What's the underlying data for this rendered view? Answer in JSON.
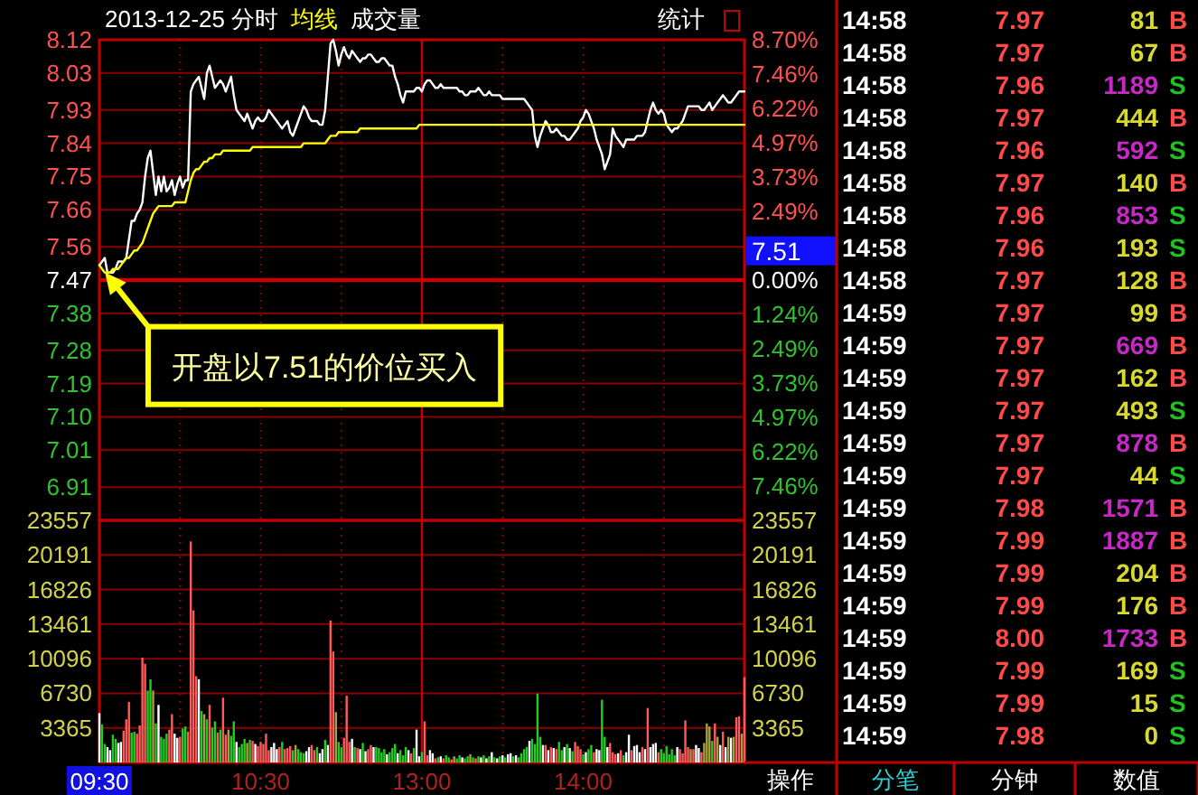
{
  "chart_data": [
    {
      "type": "line",
      "title": "2013-12-25 分时",
      "legend": "top",
      "grid": true,
      "tick_labels": "y",
      "categories": [
        "09:30",
        null,
        null,
        null,
        null,
        null,
        null,
        null,
        null,
        null,
        null,
        null,
        null,
        null,
        null,
        null,
        null,
        null,
        null,
        null,
        null,
        null,
        null,
        null,
        null,
        null,
        null,
        null,
        null,
        null,
        null,
        null,
        null,
        null,
        null,
        null,
        null,
        null,
        null,
        null,
        null,
        null,
        null,
        null,
        null,
        null,
        null,
        null,
        null,
        null,
        null,
        null,
        null,
        null,
        null,
        null,
        null,
        null,
        null,
        null,
        "10:30",
        null,
        null,
        null,
        null,
        null,
        null,
        null,
        null,
        null,
        null,
        null,
        null,
        null,
        null,
        null,
        null,
        null,
        null,
        null,
        null,
        null,
        null,
        null,
        null,
        null,
        null,
        null,
        null,
        null,
        null,
        null,
        null,
        null,
        null,
        null,
        null,
        null,
        null,
        null,
        null,
        null,
        null,
        null,
        null,
        null,
        null,
        null,
        null,
        null,
        null,
        null,
        null,
        null,
        null,
        null,
        null,
        null,
        null,
        null,
        "13:00",
        null,
        null,
        null,
        null,
        null,
        null,
        null,
        null,
        null,
        null,
        null,
        null,
        null,
        null,
        null,
        null,
        null,
        null,
        null,
        null,
        null,
        null,
        null,
        null,
        null,
        null,
        null,
        null,
        null,
        null,
        null,
        null,
        null,
        null,
        null,
        null,
        null,
        null,
        null,
        null,
        null,
        null,
        null,
        null,
        null,
        null,
        null,
        null,
        null,
        null,
        null,
        null,
        null,
        null,
        null,
        null,
        null,
        null,
        null,
        "14:00",
        null,
        null,
        null,
        null,
        null,
        null,
        null,
        null,
        null,
        null,
        null,
        null,
        null,
        null,
        null,
        null,
        null,
        null,
        null,
        null,
        null,
        null,
        null,
        null,
        null,
        null,
        null,
        null,
        null,
        null,
        null,
        null,
        null,
        null,
        null,
        null,
        null,
        null,
        null,
        null,
        null,
        null,
        null,
        null,
        null,
        null,
        null,
        null,
        null,
        null,
        null,
        null,
        null,
        null,
        null,
        null,
        null,
        null,
        null,
        null
      ],
      "ylim": [
        6.82,
        8.12
      ],
      "yticks": [
        8.12,
        8.03,
        7.93,
        7.84,
        7.75,
        7.66,
        7.56,
        7.47,
        7.38,
        7.28,
        7.19,
        {
          "value": 7.1,
          "label": "7.10"
        },
        7.01,
        6.91
      ],
      "y2lim": [
        -8.7,
        8.7
      ],
      "y2ticks": [
        {
          "value": 8.7,
          "label": "8.70%"
        },
        {
          "value": 7.46,
          "label": "7.46%"
        },
        {
          "value": 6.22,
          "label": "6.22%"
        },
        {
          "value": 4.97,
          "label": "4.97%"
        },
        {
          "value": 3.73,
          "label": "3.73%"
        },
        {
          "value": 2.49,
          "label": "2.49%"
        },
        {
          "value": 0,
          "label": "0.00%"
        },
        {
          "value": -1.24,
          "label": "1.24%"
        },
        {
          "value": -2.49,
          "label": "2.49%"
        },
        {
          "value": -3.73,
          "label": "3.73%"
        },
        {
          "value": -4.97,
          "label": "4.97%"
        },
        {
          "value": -6.22,
          "label": "6.22%"
        },
        {
          "value": -7.46,
          "label": "7.46%"
        }
      ],
      "ref_lines": [
        {
          "axis": "y",
          "value": 7.47,
          "color": "#c80000"
        },
        {
          "axis": "x",
          "value": "13:00",
          "color": "#c80000"
        }
      ],
      "series": [
        {
          "color": "#ffffff",
          "values": [
            7.51,
            7.52,
            7.53,
            7.49,
            7.49,
            7.49,
            7.5,
            7.52,
            7.52,
            7.52,
            7.53,
            7.58,
            7.63,
            7.63,
            7.65,
            7.66,
            7.68,
            7.75,
            7.8,
            7.82,
            7.76,
            7.7,
            7.75,
            7.71,
            7.75,
            7.71,
            7.72,
            7.74,
            7.7,
            7.73,
            7.75,
            7.72,
            7.74,
            7.74,
            7.98,
            8.0,
            8.01,
            8.02,
            7.99,
            7.96,
            8.03,
            8.05,
            8.02,
            7.99,
            8.0,
            8.01,
            8.0,
            7.98,
            8.0,
            8.02,
            7.97,
            7.93,
            7.92,
            7.91,
            7.9,
            7.92,
            7.9,
            7.88,
            7.9,
            7.91,
            7.9,
            7.9,
            7.91,
            7.93,
            7.92,
            7.91,
            7.9,
            7.89,
            7.88,
            7.89,
            7.9,
            7.87,
            7.86,
            7.88,
            7.9,
            7.92,
            7.94,
            7.93,
            7.91,
            7.9,
            7.9,
            7.9,
            7.89,
            7.89,
            7.93,
            8.02,
            8.11,
            8.12,
            8.09,
            8.05,
            8.08,
            8.1,
            8.08,
            8.07,
            8.09,
            8.08,
            8.07,
            8.06,
            8.07,
            8.07,
            8.08,
            8.08,
            8.07,
            8.06,
            8.06,
            8.07,
            8.07,
            8.06,
            8.05,
            8.05,
            8.02,
            8.0,
            7.97,
            7.95,
            7.98,
            7.98,
            7.98,
            7.98,
            7.99,
            7.99,
            7.98,
            8.0,
            8.01,
            8.01,
            8.0,
            7.99,
            7.99,
            8.0,
            7.99,
            7.99,
            7.99,
            7.99,
            7.99,
            7.99,
            7.98,
            7.98,
            7.97,
            7.97,
            7.98,
            7.98,
            7.98,
            7.99,
            7.98,
            7.97,
            7.97,
            7.98,
            7.97,
            7.97,
            7.97,
            7.97,
            7.96,
            7.96,
            7.96,
            7.96,
            7.96,
            7.96,
            7.96,
            7.96,
            7.96,
            7.95,
            7.94,
            7.93,
            7.86,
            7.83,
            7.86,
            7.88,
            7.9,
            7.89,
            7.87,
            7.87,
            7.88,
            7.87,
            7.86,
            7.86,
            7.85,
            7.85,
            7.86,
            7.87,
            7.88,
            7.9,
            7.91,
            7.93,
            7.92,
            7.9,
            7.88,
            7.85,
            7.83,
            7.81,
            7.77,
            7.79,
            7.81,
            7.88,
            7.86,
            7.85,
            7.84,
            7.83,
            7.85,
            7.85,
            7.85,
            7.85,
            7.86,
            7.86,
            7.86,
            7.87,
            7.9,
            7.93,
            7.95,
            7.93,
            7.92,
            7.93,
            7.92,
            7.89,
            7.88,
            7.87,
            7.88,
            7.88,
            7.89,
            7.9,
            7.92,
            7.94,
            7.94,
            7.94,
            7.94,
            7.94,
            7.93,
            7.93,
            7.94,
            7.95,
            7.93,
            7.94,
            7.95,
            7.96,
            7.97,
            7.96,
            7.95,
            7.95,
            7.96,
            7.97,
            7.98,
            7.98,
            7.98
          ]
        },
        {
          "name": "均线",
          "color": "#ffff00",
          "values": [
            7.51,
            7.5,
            7.49,
            7.49,
            7.49,
            7.5,
            7.5,
            7.5,
            7.51,
            7.52,
            7.53,
            7.53,
            7.54,
            7.55,
            7.55,
            7.56,
            7.57,
            7.59,
            7.61,
            7.63,
            7.65,
            7.66,
            7.67,
            7.67,
            7.67,
            7.67,
            7.67,
            7.67,
            7.68,
            7.68,
            7.68,
            7.68,
            7.68,
            7.71,
            7.74,
            7.76,
            7.77,
            7.77,
            7.78,
            7.79,
            7.79,
            7.8,
            7.8,
            7.81,
            7.81,
            7.81,
            7.82,
            7.82,
            7.82,
            7.82,
            7.82,
            7.82,
            7.82,
            7.82,
            7.82,
            7.82,
            7.82,
            7.83,
            7.83,
            7.83,
            7.83,
            7.83,
            7.83,
            7.83,
            7.83,
            7.83,
            7.83,
            7.83,
            7.83,
            7.83,
            7.83,
            7.83,
            7.83,
            7.83,
            7.83,
            7.83,
            7.84,
            7.84,
            7.84,
            7.84,
            7.84,
            7.84,
            7.84,
            7.84,
            7.84,
            7.85,
            7.86,
            7.86,
            7.86,
            7.87,
            7.87,
            7.87,
            7.87,
            7.87,
            7.87,
            7.87,
            7.87,
            7.88,
            7.88,
            7.88,
            7.88,
            7.88,
            7.88,
            7.88,
            7.88,
            7.88,
            7.88,
            7.88,
            7.88,
            7.88,
            7.88,
            7.88,
            7.88,
            7.88,
            7.88,
            7.88,
            7.88,
            7.88,
            7.88,
            7.89,
            7.89,
            7.89,
            7.89,
            7.89,
            7.89,
            7.89,
            7.89,
            7.89,
            7.89,
            7.89,
            7.89,
            7.89,
            7.89,
            7.89,
            7.89,
            7.89,
            7.89,
            7.89,
            7.89,
            7.89,
            7.89,
            7.89,
            7.89,
            7.89,
            7.89,
            7.89,
            7.89,
            7.89,
            7.89,
            7.89,
            7.89,
            7.89,
            7.89,
            7.89,
            7.89,
            7.89,
            7.89,
            7.89,
            7.89,
            7.89,
            7.89,
            7.89,
            7.89,
            7.89,
            7.89,
            7.89,
            7.89,
            7.89,
            7.89,
            7.89,
            7.89,
            7.89,
            7.89,
            7.89,
            7.89,
            7.89,
            7.89,
            7.89,
            7.89,
            7.89,
            7.89,
            7.89,
            7.89,
            7.89,
            7.89,
            7.89,
            7.89,
            7.89,
            7.89,
            7.89,
            7.89,
            7.89,
            7.89,
            7.89,
            7.89,
            7.89,
            7.89,
            7.89,
            7.89,
            7.89,
            7.89,
            7.89,
            7.89,
            7.89,
            7.89,
            7.89,
            7.89,
            7.89,
            7.89,
            7.89,
            7.89,
            7.89,
            7.89,
            7.89,
            7.89,
            7.89,
            7.89,
            7.89,
            7.89,
            7.89,
            7.89,
            7.89,
            7.89,
            7.89,
            7.89,
            7.89,
            7.89,
            7.89,
            7.89,
            7.89,
            7.89,
            7.89,
            7.89,
            7.89,
            7.89,
            7.89,
            7.89,
            7.89,
            7.89,
            7.89,
            7.89
          ]
        }
      ],
      "annotations": [
        "开盘以7.51的价位买入",
        "7.51",
        "成交量",
        "统计"
      ]
    },
    {
      "type": "bar",
      "grid": true,
      "categories": [
        "09:30",
        null,
        null,
        null,
        null,
        null,
        null,
        null,
        null,
        null,
        null,
        null,
        null,
        null,
        null,
        null,
        null,
        null,
        null,
        null,
        null,
        null,
        null,
        null,
        null,
        null,
        null,
        null,
        null,
        null,
        null,
        null,
        null,
        null,
        null,
        null,
        null,
        null,
        null,
        null,
        null,
        null,
        null,
        null,
        null,
        null,
        null,
        null,
        null,
        null,
        null,
        null,
        null,
        null,
        null,
        null,
        null,
        null,
        null,
        null,
        "10:30",
        null,
        null,
        null,
        null,
        null,
        null,
        null,
        null,
        null,
        null,
        null,
        null,
        null,
        null,
        null,
        null,
        null,
        null,
        null,
        null,
        null,
        null,
        null,
        null,
        null,
        null,
        null,
        null,
        null,
        null,
        null,
        null,
        null,
        null,
        null,
        null,
        null,
        null,
        null,
        null,
        null,
        null,
        null,
        null,
        null,
        null,
        null,
        null,
        null,
        null,
        null,
        null,
        null,
        null,
        null,
        null,
        null,
        null,
        null,
        "13:00",
        null,
        null,
        null,
        null,
        null,
        null,
        null,
        null,
        null,
        null,
        null,
        null,
        null,
        null,
        null,
        null,
        null,
        null,
        null,
        null,
        null,
        null,
        null,
        null,
        null,
        null,
        null,
        null,
        null,
        null,
        null,
        null,
        null,
        null,
        null,
        null,
        null,
        null,
        null,
        null,
        null,
        null,
        null,
        null,
        null,
        null,
        null,
        null,
        null,
        null,
        null,
        null,
        null,
        null,
        null,
        null,
        null,
        null,
        null,
        "14:00",
        null,
        null,
        null,
        null,
        null,
        null,
        null,
        null,
        null,
        null,
        null,
        null,
        null,
        null,
        null,
        null,
        null,
        null,
        null,
        null,
        null,
        null,
        null,
        null,
        null,
        null,
        null,
        null,
        null,
        null,
        null,
        null,
        null,
        null,
        null,
        null,
        null,
        null,
        null,
        null,
        null,
        null,
        null,
        null,
        null,
        null,
        null,
        null,
        null,
        null,
        null,
        null,
        null,
        null,
        null,
        null,
        null,
        null,
        null,
        null
      ],
      "ylim": [
        0,
        23557
      ],
      "yticks": [
        3365,
        6730,
        10096,
        13461,
        16826,
        20191,
        23557
      ],
      "y2lim": [
        0,
        23557
      ],
      "y2ticks": [
        3365,
        6730,
        10096,
        13461,
        16826,
        20191,
        23557
      ],
      "ref_lines": [
        {
          "axis": "x",
          "value": "13:00",
          "color": "#c80000"
        }
      ],
      "values": [
        4800,
        3700,
        1800,
        1500,
        1200,
        2700,
        2300,
        1900,
        2000,
        3100,
        4200,
        5900,
        2900,
        3000,
        2800,
        3600,
        10200,
        9600,
        7000,
        8100,
        7000,
        3800,
        5600,
        2500,
        2300,
        2800,
        3200,
        4700,
        2800,
        2400,
        2500,
        3300,
        3500,
        3000,
        21500,
        14800,
        8400,
        8100,
        5000,
        4700,
        4200,
        5600,
        3400,
        4000,
        2900,
        3200,
        6300,
        2700,
        3200,
        2600,
        4000,
        2000,
        1500,
        1800,
        2300,
        1900,
        2200,
        2100,
        1800,
        1600,
        2000,
        1800,
        2800,
        1200,
        1500,
        1900,
        1300,
        1500,
        2000,
        1300,
        1400,
        1600,
        1200,
        1700,
        1300,
        1000,
        900,
        1100,
        1500,
        1700,
        1200,
        1500,
        900,
        1300,
        2200,
        1700,
        13800,
        10800,
        4900,
        2000,
        1500,
        2400,
        6500,
        2000,
        2300,
        1500,
        1400,
        1300,
        1900,
        1100,
        1300,
        1700,
        1500,
        1500,
        1400,
        1000,
        1300,
        800,
        1000,
        1400,
        1800,
        900,
        1200,
        700,
        1500,
        1200,
        900,
        1400,
        3200,
        600,
        1000,
        4000,
        700,
        1200,
        900,
        400,
        500,
        600,
        400,
        700,
        500,
        300,
        600,
        400,
        700,
        500,
        400,
        600,
        800,
        500,
        400,
        600,
        500,
        700,
        400,
        600,
        1000,
        500,
        400,
        600,
        700,
        500,
        800,
        900,
        600,
        700,
        500,
        900,
        1300,
        1500,
        2100,
        2300,
        1800,
        6700,
        2500,
        1700,
        1700,
        1200,
        1500,
        1400,
        1300,
        2000,
        1200,
        1500,
        1800,
        1400,
        1100,
        2000,
        1600,
        1300,
        800,
        1000,
        1300,
        1700,
        1000,
        1300,
        1200,
        6100,
        2500,
        1500,
        1900,
        1000,
        800,
        900,
        1200,
        700,
        1000,
        2700,
        1200,
        1600,
        1700,
        1000,
        1500,
        1300,
        5300,
        1500,
        1800,
        1900,
        1000,
        1300,
        900,
        1600,
        800,
        1300,
        700,
        1500,
        1300,
        900,
        4100,
        1500,
        1300,
        1300,
        1700,
        1400,
        1000,
        1900,
        3800,
        3500,
        2100,
        3800,
        2500,
        1700,
        3000,
        1500,
        2500,
        2400,
        2500,
        4400,
        4500,
        2800,
        8300
      ],
      "colors": [
        "#ffffff",
        "#22cc22",
        "#22cc22",
        "#ffffff",
        "#ffffff",
        "#22cc22",
        "#22cc22",
        "#ffffff",
        "#ffffff",
        "#ff5a5a",
        "#ff5a5a",
        "#ff5a5a",
        "#22cc22",
        "#22cc22",
        "#ff5a5a",
        "#ff5a5a",
        "#ff5a5a",
        "#ff5a5a",
        "#22cc22",
        "#22cc22",
        "#a8a040",
        "#22cc22",
        "#ffffff",
        "#22cc22",
        "#22cc22",
        "#22cc22",
        "#ff5a5a",
        "#ff5a5a",
        "#ffffff",
        "#ffffff",
        "#ff5a5a",
        "#22cc22",
        "#22cc22",
        "#ff5a5a",
        "#ff5a5a",
        "#ff5a5a",
        "#ff5a5a",
        "#ffffff",
        "#22cc22",
        "#a8a040",
        "#22cc22",
        "#ff5a5a",
        "#22cc22",
        "#22cc22",
        "#ff5a5a",
        "#22cc22",
        "#ff5a5a",
        "#ff5a5a",
        "#a8a040",
        "#22cc22",
        "#22cc22",
        "#ffffff",
        "#22cc22",
        "#22cc22",
        "#22cc22",
        "#a8a040",
        "#22cc22",
        "#ff5a5a",
        "#ffffff",
        "#ff5a5a",
        "#ff5a5a",
        "#ff5a5a",
        "#ff5a5a",
        "#ff5a5a",
        "#ffffff",
        "#ffffff",
        "#ffffff",
        "#ff5a5a",
        "#22cc22",
        "#ff5a5a",
        "#ff5a5a",
        "#ff5a5a",
        "#22cc22",
        "#a8a040",
        "#22cc22",
        "#22cc22",
        "#22cc22",
        "#ffffff",
        "#ffffff",
        "#ff5a5a",
        "#ff5a5a",
        "#22cc22",
        "#ffffff",
        "#ffffff",
        "#22cc22",
        "#ffffff",
        "#ff5a5a",
        "#ff5a5a",
        "#a8a040",
        "#22cc22",
        "#22cc22",
        "#ff5a5a",
        "#ff5a5a",
        "#ff5a5a",
        "#ffffff",
        "#22cc22",
        "#ff5a5a",
        "#ffffff",
        "#22cc22",
        "#ffffff",
        "#ff5a5a",
        "#ff5a5a",
        "#ffffff",
        "#22cc22",
        "#22cc22",
        "#22cc22",
        "#22cc22",
        "#ffffff",
        "#22cc22",
        "#22cc22",
        "#22cc22",
        "#ffffff",
        "#22cc22",
        "#22cc22",
        "#22cc22",
        "#ffffff",
        "#ff5a5a",
        "#22cc22",
        "#ffffff",
        "#ffffff",
        "#22cc22",
        "#ff5a5a",
        "#ff5a5a",
        "#ffffff",
        "#ffffff",
        "#ff5a5a",
        "#22cc22",
        "#ffffff",
        "#ff5a5a",
        "#22cc22",
        "#22cc22",
        "#ff5a5a",
        "#a8a040",
        "#22cc22",
        "#22cc22",
        "#ffffff",
        "#22cc22",
        "#22cc22",
        "#a8a040",
        "#22cc22",
        "#ff5a5a",
        "#22cc22",
        "#ffffff",
        "#22cc22",
        "#ffffff",
        "#22cc22",
        "#ffffff",
        "#22cc22",
        "#ffffff",
        "#22cc22",
        "#ffffff",
        "#22cc22",
        "#ffffff",
        "#ffffff",
        "#22cc22",
        "#ffffff",
        "#22cc22",
        "#22cc22",
        "#22cc22",
        "#22cc22",
        "#ffffff",
        "#22cc22",
        "#22cc22",
        "#22cc22",
        "#22cc22",
        "#ffffff",
        "#ff5a5a",
        "#ffffff",
        "#ff5a5a",
        "#ffffff",
        "#ff5a5a",
        "#22cc22",
        "#22cc22",
        "#ffffff",
        "#22cc22",
        "#ffffff",
        "#22cc22",
        "#ff5a5a",
        "#ff5a5a",
        "#ff5a5a",
        "#22cc22",
        "#ffffff",
        "#22cc22",
        "#22cc22",
        "#ff5a5a",
        "#ffffff",
        "#ffffff",
        "#22cc22",
        "#22cc22",
        "#ffffff",
        "#ff5a5a",
        "#ff5a5a",
        "#ff5a5a",
        "#ffffff",
        "#ff5a5a",
        "#22cc22",
        "#ffffff",
        "#ffffff",
        "#ff5a5a",
        "#ffffff",
        "#ffffff",
        "#ffffff",
        "#ff5a5a",
        "#ffffff",
        "#ff5a5a",
        "#ffffff",
        "#ffffff",
        "#ffffff",
        "#ff5a5a",
        "#22cc22",
        "#22cc22",
        "#22cc22",
        "#22cc22",
        "#22cc22",
        "#22cc22",
        "#ffffff",
        "#ff5a5a",
        "#ff5a5a",
        "#ff5a5a",
        "#ff5a5a",
        "#a8a040",
        "#ff5a5a",
        "#ffffff",
        "#ffffff",
        "#ff5a5a",
        "#a8a040",
        "#a8a040",
        "#a8a040",
        "#22cc22",
        "#ff5a5a",
        "#a8a040",
        "#ffffff",
        "#ff5a5a",
        "#ffffff",
        "#a8a040",
        "#ffffff",
        "#a8a040",
        "#ff5a5a",
        "#ff5a5a",
        "#a8a040",
        "#ff5a5a"
      ]
    },
    {
      "type": "other",
      "y_categories": [
        "14:58",
        "14:58",
        "14:58",
        "14:58",
        "14:58",
        "14:58",
        "14:58",
        "14:58",
        "14:58",
        "14:59",
        "14:59",
        "14:59",
        "14:59",
        "14:59",
        "14:59",
        "14:59",
        "14:59",
        "14:59",
        "14:59",
        "14:59",
        "14:59",
        "14:59",
        "14:59"
      ],
      "cell_labels": [
        [
          "7.97",
          "81",
          "B"
        ],
        [
          "7.97",
          "67",
          "B"
        ],
        [
          "7.96",
          "1189",
          "S"
        ],
        [
          "7.97",
          "444",
          "B"
        ],
        [
          "7.96",
          "592",
          "S"
        ],
        [
          "7.97",
          "140",
          "B"
        ],
        [
          "7.96",
          "853",
          "S"
        ],
        [
          "7.96",
          "193",
          "S"
        ],
        [
          "7.97",
          "128",
          "B"
        ],
        [
          "7.97",
          "99",
          "B"
        ],
        [
          "7.97",
          "669",
          "B"
        ],
        [
          "7.97",
          "162",
          "B"
        ],
        [
          "7.97",
          "493",
          "S"
        ],
        [
          "7.97",
          "878",
          "B"
        ],
        [
          "7.97",
          "44",
          "S"
        ],
        [
          "7.98",
          "1571",
          "B"
        ],
        [
          "7.99",
          "1887",
          "B"
        ],
        [
          "7.99",
          "204",
          "B"
        ],
        [
          "7.99",
          "176",
          "B"
        ],
        [
          "8.00",
          "1733",
          "B"
        ],
        [
          "7.99",
          "169",
          "S"
        ],
        [
          "7.99",
          "15",
          "S"
        ],
        [
          "7.98",
          "0",
          "S"
        ]
      ],
      "colors": [
        [
          "#ff4a4a",
          "#d8d830",
          "#ff4a4a"
        ],
        [
          "#ff4a4a",
          "#d8d830",
          "#ff4a4a"
        ],
        [
          "#ff4a4a",
          "#c828c8",
          "#22c022"
        ],
        [
          "#ff4a4a",
          "#d8d830",
          "#ff4a4a"
        ],
        [
          "#ff4a4a",
          "#c828c8",
          "#22c022"
        ],
        [
          "#ff4a4a",
          "#d8d830",
          "#ff4a4a"
        ],
        [
          "#ff4a4a",
          "#c828c8",
          "#22c022"
        ],
        [
          "#ff4a4a",
          "#d8d830",
          "#22c022"
        ],
        [
          "#ff4a4a",
          "#d8d830",
          "#ff4a4a"
        ],
        [
          "#ff4a4a",
          "#d8d830",
          "#ff4a4a"
        ],
        [
          "#ff4a4a",
          "#c828c8",
          "#ff4a4a"
        ],
        [
          "#ff4a4a",
          "#d8d830",
          "#ff4a4a"
        ],
        [
          "#ff4a4a",
          "#d8d830",
          "#22c022"
        ],
        [
          "#ff4a4a",
          "#c828c8",
          "#ff4a4a"
        ],
        [
          "#ff4a4a",
          "#d8d830",
          "#22c022"
        ],
        [
          "#ff4a4a",
          "#c828c8",
          "#ff4a4a"
        ],
        [
          "#ff4a4a",
          "#c828c8",
          "#ff4a4a"
        ],
        [
          "#ff4a4a",
          "#d8d830",
          "#ff4a4a"
        ],
        [
          "#ff4a4a",
          "#d8d830",
          "#ff4a4a"
        ],
        [
          "#ff4a4a",
          "#c828c8",
          "#ff4a4a"
        ],
        [
          "#ff4a4a",
          "#d8d830",
          "#22c022"
        ],
        [
          "#ff4a4a",
          "#d8d830",
          "#22c022"
        ],
        [
          "#ff4a4a",
          "#d8d830",
          "#22c022"
        ]
      ],
      "annotations": [
        "操作",
        "分笔",
        "分钟",
        "数值"
      ]
    }
  ]
}
